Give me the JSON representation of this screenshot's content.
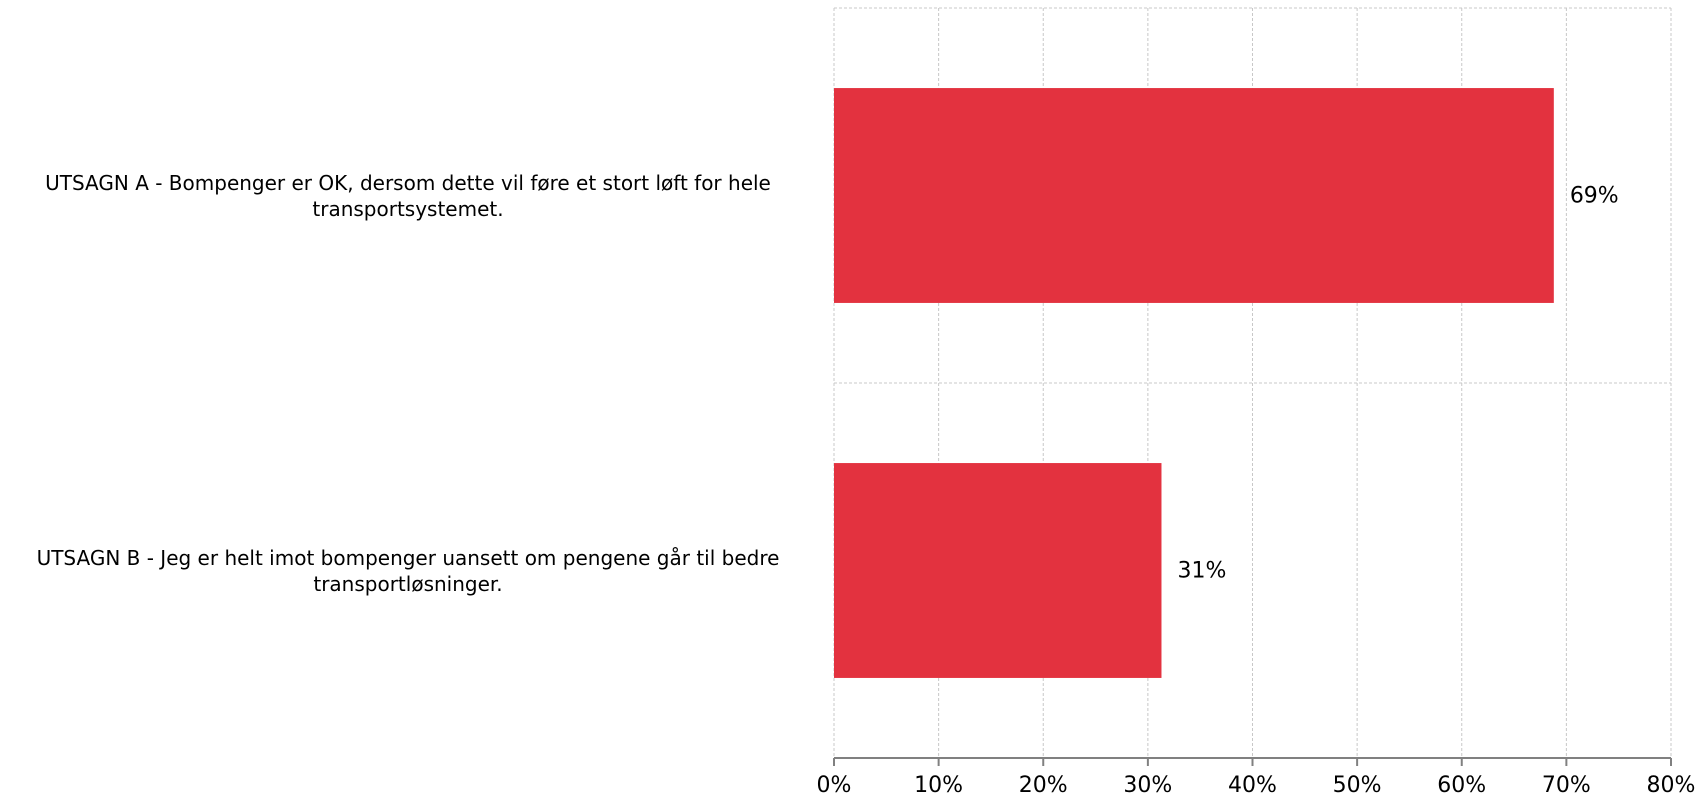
{
  "chart_data": {
    "type": "bar",
    "orientation": "horizontal",
    "categories": [
      "UTSAGN A - Bompenger er OK, dersom dette vil føre et stort løft for hele transportsystemet.",
      "UTSAGN B - Jeg er helt imot bompenger uansett om pengene går til bedre transportløsninger."
    ],
    "category_lines": [
      [
        "UTSAGN A - Bompenger er OK, dersom dette vil føre et stort løft for hele",
        "transportsystemet."
      ],
      [
        "UTSAGN B - Jeg er helt imot bompenger uansett om pengene går til bedre",
        "transportløsninger."
      ]
    ],
    "values": [
      68.8,
      31.3
    ],
    "data_labels": [
      "69%",
      "31%"
    ],
    "xlim": [
      0,
      80
    ],
    "x_ticks": [
      0,
      10,
      20,
      30,
      40,
      50,
      60,
      70,
      80
    ],
    "x_tick_labels": [
      "0%",
      "10%",
      "20%",
      "30%",
      "40%",
      "50%",
      "60%",
      "70%",
      "80%"
    ],
    "grid": true,
    "bar_color": "#e3323f",
    "title": "",
    "xlabel": "",
    "ylabel": ""
  }
}
